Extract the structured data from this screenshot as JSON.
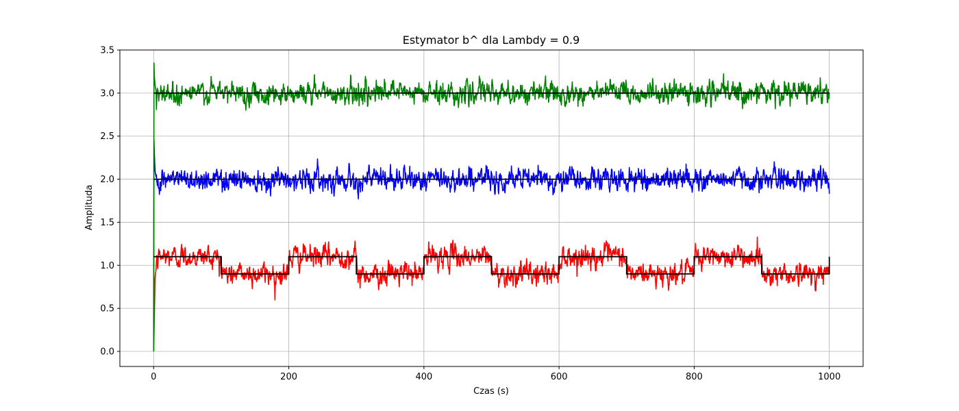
{
  "chart_data": {
    "type": "line",
    "title": "Estymator b^ dla Lambdy = 0.9",
    "xlabel": "Czas (s)",
    "ylabel": "Amplituda",
    "xlim": [
      -50,
      1050
    ],
    "ylim": [
      -0.175,
      3.5
    ],
    "xticks": [
      0,
      200,
      400,
      600,
      800,
      1000
    ],
    "xtick_labels": [
      "0",
      "200",
      "400",
      "600",
      "800",
      "1000"
    ],
    "yticks": [
      0.0,
      0.5,
      1.0,
      1.5,
      2.0,
      2.5,
      3.0,
      3.5
    ],
    "ytick_labels": [
      "0.0",
      "0.5",
      "1.0",
      "1.5",
      "2.0",
      "2.5",
      "3.0",
      "3.5"
    ],
    "grid": true,
    "legend": false,
    "series": [
      {
        "color": "#ff0000",
        "description": "estimate tracking square wave reference, noise ~0.1",
        "noise_sd": 0.075,
        "x": [
          0,
          1,
          2,
          5,
          10,
          20,
          50,
          99,
          100,
          101,
          150,
          199,
          200,
          201,
          250,
          299,
          300,
          301,
          350,
          399,
          400,
          401,
          450,
          499,
          500,
          501,
          550,
          599,
          600,
          601,
          650,
          699,
          700,
          701,
          750,
          799,
          800,
          801,
          850,
          899,
          900,
          901,
          950,
          1000
        ],
        "y": [
          0.0,
          0.4,
          0.85,
          1.05,
          1.1,
          1.1,
          1.1,
          1.1,
          1.05,
          0.9,
          0.9,
          0.9,
          0.95,
          1.1,
          1.1,
          1.1,
          1.05,
          0.9,
          0.9,
          0.9,
          0.95,
          1.1,
          1.1,
          1.1,
          1.05,
          0.9,
          0.9,
          0.9,
          0.95,
          1.1,
          1.1,
          1.1,
          1.05,
          0.9,
          0.9,
          0.9,
          0.95,
          1.1,
          1.1,
          1.1,
          1.05,
          0.9,
          0.9,
          0.9
        ]
      },
      {
        "color": "#0000ff",
        "description": "estimate around 2.0, initial spike",
        "noise_sd": 0.075,
        "x": [
          0,
          0.5,
          1,
          2,
          4,
          10,
          100,
          200,
          300,
          400,
          500,
          600,
          700,
          800,
          900,
          1000
        ],
        "y": [
          0.0,
          2.45,
          2.3,
          2.1,
          2.0,
          2.0,
          2.0,
          2.0,
          2.0,
          2.0,
          2.0,
          2.0,
          2.0,
          2.0,
          2.0,
          2.0
        ]
      },
      {
        "color": "#008000",
        "description": "estimate around 3.0, initial spike",
        "noise_sd": 0.075,
        "x": [
          0,
          0.5,
          1,
          2,
          4,
          10,
          100,
          200,
          300,
          400,
          500,
          600,
          700,
          800,
          900,
          1000
        ],
        "y": [
          0.0,
          3.35,
          3.2,
          3.1,
          3.0,
          3.0,
          3.0,
          3.0,
          3.0,
          3.0,
          3.0,
          3.0,
          3.0,
          3.0,
          3.0,
          3.0
        ]
      }
    ],
    "references": [
      {
        "color": "#000000",
        "description": "square wave reference",
        "x": [
          0,
          100,
          100,
          200,
          200,
          300,
          300,
          400,
          400,
          500,
          500,
          600,
          600,
          700,
          700,
          800,
          800,
          900,
          900,
          1000,
          1000
        ],
        "y": [
          1.1,
          1.1,
          0.9,
          0.9,
          1.1,
          1.1,
          0.9,
          0.9,
          1.1,
          1.1,
          0.9,
          0.9,
          1.1,
          1.1,
          0.9,
          0.9,
          1.1,
          1.1,
          0.9,
          0.9,
          1.1
        ]
      },
      {
        "color": "#000000",
        "description": "constant reference 2.0",
        "x": [
          0,
          1000
        ],
        "y": [
          2.0,
          2.0
        ]
      },
      {
        "color": "#000000",
        "description": "constant reference 3.0",
        "x": [
          0,
          1000
        ],
        "y": [
          3.0,
          3.0
        ]
      }
    ]
  }
}
